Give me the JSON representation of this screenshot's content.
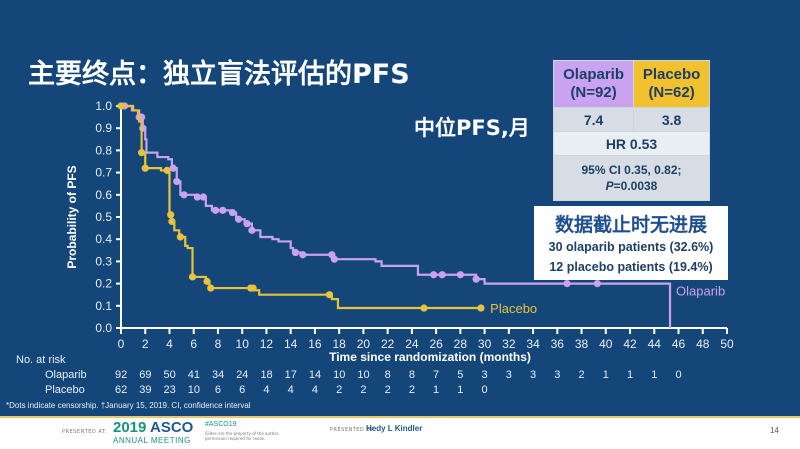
{
  "slide": {
    "title": "主要终点：独立盲法评估的PFS",
    "median_label": "中位PFS,月",
    "results_table": {
      "olaparib_header": "Olaparib",
      "olaparib_n": "(N=92)",
      "placebo_header": "Placebo",
      "placebo_n": "(N=62)",
      "olaparib_median": "7.4",
      "placebo_median": "3.8",
      "hr": "HR 0.53",
      "ci": "95% CI 0.35, 0.82;",
      "p_label": "P",
      "p_value": "=0.0038"
    },
    "progression_free_box": {
      "heading": "数据截止时无进展",
      "olaparib_line": "30 olaparib patients (32.6%)",
      "placebo_line": "12 placebo patients (19.4%)"
    },
    "risk_table": {
      "header": "No. at risk",
      "rows": [
        {
          "label": "Olaparib",
          "values": [
            "92",
            "69",
            "50",
            "41",
            "34",
            "24",
            "18",
            "17",
            "14",
            "10",
            "10",
            "8",
            "8",
            "7",
            "5",
            "3",
            "3",
            "3",
            "3",
            "2",
            "1",
            "1",
            "1",
            "0"
          ]
        },
        {
          "label": "Placebo",
          "values": [
            "62",
            "39",
            "23",
            "10",
            "6",
            "6",
            "4",
            "4",
            "4",
            "2",
            "2",
            "2",
            "2",
            "1",
            "1",
            "0"
          ]
        }
      ]
    },
    "footnote": "*Dots indicate censorship. †January 15, 2019. CI, confidence interval",
    "footer": {
      "presented_at": "PRESENTED AT:",
      "meeting_year": "2019",
      "meeting_name": "ASCO",
      "meeting_sub": "ANNUAL MEETING",
      "hashtag": "#ASCO19",
      "rights": "Slides are the property of the author, permission required for reuse.",
      "presented_by": "PRESENTED BY:",
      "presenter": "Hedy L Kindler",
      "page": "14"
    }
  },
  "colors": {
    "background": "#15467a",
    "olaparib": "#c9a3ef",
    "placebo": "#e8c33a",
    "axis": "#ffffff"
  },
  "chart_data": {
    "type": "line",
    "subtype": "kaplan-meier step",
    "title": "主要终点：独立盲法评估的PFS",
    "xlabel": "Time since randomization (months)",
    "ylabel": "Probability of PFS",
    "xlim": [
      0,
      50
    ],
    "ylim": [
      0,
      1.0
    ],
    "x_ticks": [
      0,
      2,
      4,
      6,
      8,
      10,
      12,
      14,
      16,
      18,
      20,
      22,
      24,
      26,
      28,
      30,
      32,
      34,
      36,
      38,
      40,
      42,
      44,
      46,
      48,
      50
    ],
    "y_ticks": [
      "0.0",
      "0.1",
      "0.2",
      "0.3",
      "0.4",
      "0.5",
      "0.6",
      "0.7",
      "0.8",
      "0.9",
      "1.0"
    ],
    "grid": false,
    "legend": "inline labels at curve ends",
    "series": [
      {
        "name": "Olaparib",
        "color": "#c9a3ef",
        "steps": [
          [
            0,
            1.0
          ],
          [
            0.9,
            0.98
          ],
          [
            1.4,
            0.95
          ],
          [
            1.8,
            0.9
          ],
          [
            2.0,
            0.85
          ],
          [
            2.1,
            0.79
          ],
          [
            3.0,
            0.77
          ],
          [
            3.9,
            0.76
          ],
          [
            4.2,
            0.72
          ],
          [
            4.6,
            0.66
          ],
          [
            4.9,
            0.6
          ],
          [
            6.2,
            0.59
          ],
          [
            7.0,
            0.55
          ],
          [
            7.5,
            0.53
          ],
          [
            9.0,
            0.52
          ],
          [
            9.5,
            0.49
          ],
          [
            10.2,
            0.47
          ],
          [
            10.8,
            0.44
          ],
          [
            11.5,
            0.41
          ],
          [
            12.5,
            0.4
          ],
          [
            13.0,
            0.39
          ],
          [
            14.0,
            0.36
          ],
          [
            14.2,
            0.34
          ],
          [
            15.0,
            0.33
          ],
          [
            17.5,
            0.31
          ],
          [
            21.0,
            0.3
          ],
          [
            21.5,
            0.28
          ],
          [
            24.5,
            0.24
          ],
          [
            29.3,
            0.22
          ],
          [
            30.0,
            0.2
          ],
          [
            45.3,
            0.17
          ],
          [
            45.3,
            0.0
          ]
        ],
        "censor_x": [
          0.3,
          1.5,
          1.7,
          1.8,
          4.3,
          4.6,
          5.2,
          6.3,
          6.8,
          7.8,
          8.4,
          9.2,
          9.7,
          10.4,
          10.8,
          14.4,
          15.0,
          17.4,
          17.6,
          25.8,
          26.5,
          28.0,
          29.3,
          36.8,
          39.3
        ],
        "end_label": "Olaparib"
      },
      {
        "name": "Placebo",
        "color": "#e8c33a",
        "steps": [
          [
            0,
            1.0
          ],
          [
            1.0,
            0.98
          ],
          [
            1.5,
            0.93
          ],
          [
            1.7,
            0.79
          ],
          [
            2.0,
            0.72
          ],
          [
            3.3,
            0.71
          ],
          [
            3.9,
            0.7
          ],
          [
            4.0,
            0.51
          ],
          [
            4.2,
            0.48
          ],
          [
            4.4,
            0.44
          ],
          [
            4.8,
            0.41
          ],
          [
            5.3,
            0.37
          ],
          [
            5.5,
            0.36
          ],
          [
            5.8,
            0.36
          ],
          [
            5.9,
            0.23
          ],
          [
            7.0,
            0.21
          ],
          [
            7.3,
            0.18
          ],
          [
            11.0,
            0.17
          ],
          [
            11.4,
            0.15
          ],
          [
            17.4,
            0.13
          ],
          [
            17.9,
            0.09
          ],
          [
            29.8,
            0.09
          ]
        ],
        "censor_x": [
          0,
          1.7,
          2.0,
          3.8,
          4.1,
          4.2,
          4.9,
          5.9,
          7.1,
          7.4,
          10.7,
          10.9,
          17.2,
          25.0,
          29.7
        ],
        "end_label": "Placebo"
      }
    ],
    "table_in_chart": {
      "columns": [
        "",
        "Olaparib (N=92)",
        "Placebo (N=62)"
      ],
      "rows": [
        [
          "Median PFS, months",
          "7.4",
          "3.8"
        ],
        [
          "HR",
          "0.53",
          ""
        ],
        [
          "95% CI",
          "0.35, 0.82",
          ""
        ],
        [
          "P",
          "0.0038",
          ""
        ]
      ]
    }
  }
}
